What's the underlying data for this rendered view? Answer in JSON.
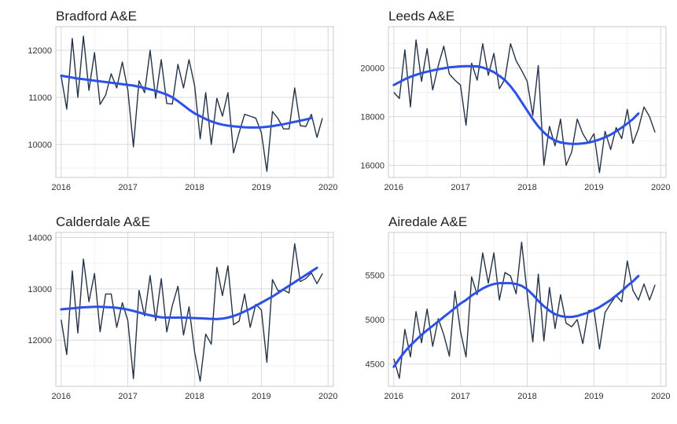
{
  "colors": {
    "series": "#243447",
    "trend": "#2d50e6",
    "grid": "#d9d9d9"
  },
  "chart_data": [
    {
      "type": "line",
      "title": "Bradford A&E",
      "x_start": "2016-01",
      "x_step": "month",
      "xlim": [
        2015.92,
        2020.08
      ],
      "ylim": [
        9300,
        12500
      ],
      "x_ticks": [
        2016,
        2017,
        2018,
        2019,
        2020
      ],
      "y_ticks": [
        10000,
        11000,
        12000
      ],
      "xlabel": "",
      "ylabel": "",
      "grid": true,
      "series": [
        {
          "values": [
            11450,
            10750,
            12250,
            11000,
            12300,
            11150,
            11950,
            10850,
            11050,
            11500,
            11200,
            11750,
            11150,
            9950,
            11350,
            11100,
            12000,
            10980,
            11800,
            10870,
            10860,
            11700,
            11200,
            11800,
            11250,
            10120,
            11100,
            10000,
            10980,
            10600,
            11100,
            9820,
            10250,
            10640,
            10600,
            10560,
            10250,
            9430,
            10700,
            10550,
            10330,
            10330,
            11200,
            10400,
            10380,
            10640,
            10150,
            10560
          ]
        },
        {
          "values": [
            11460,
            11440,
            11420,
            11400,
            11385,
            11370,
            11355,
            11340,
            11325,
            11310,
            11295,
            11280,
            11265,
            11250,
            11225,
            11200,
            11170,
            11140,
            11100,
            11060,
            11000,
            10920,
            10830,
            10740,
            10660,
            10600,
            10540,
            10490,
            10450,
            10420,
            10400,
            10385,
            10375,
            10365,
            10360,
            10360,
            10365,
            10375,
            10390,
            10410,
            10430,
            10455,
            10480,
            10505,
            10530,
            10560
          ]
        }
      ]
    },
    {
      "type": "line",
      "title": "Leeds A&E",
      "x_start": "2016-01",
      "x_step": "month",
      "xlim": [
        2015.92,
        2020.08
      ],
      "ylim": [
        15500,
        21700
      ],
      "x_ticks": [
        2016,
        2017,
        2018,
        2019,
        2020
      ],
      "y_ticks": [
        16000,
        18000,
        20000
      ],
      "xlabel": "",
      "ylabel": "",
      "grid": true,
      "series": [
        {
          "values": [
            19000,
            18750,
            20750,
            18400,
            21150,
            19450,
            20800,
            19100,
            20100,
            20900,
            19750,
            19500,
            19300,
            17650,
            20200,
            19500,
            21000,
            19700,
            20600,
            19150,
            19550,
            21000,
            20300,
            19900,
            19450,
            18050,
            20100,
            16000,
            17600,
            16800,
            17900,
            16000,
            16550,
            17900,
            17300,
            16920,
            17300,
            15700,
            17400,
            16650,
            17550,
            17100,
            18300,
            16900,
            17500,
            18400,
            18000,
            17350
          ]
        },
        {
          "values": [
            19300,
            19420,
            19540,
            19640,
            19720,
            19790,
            19850,
            19900,
            19950,
            19990,
            20030,
            20050,
            20070,
            20080,
            20080,
            20070,
            20020,
            19940,
            19830,
            19680,
            19500,
            19250,
            18950,
            18600,
            18250,
            17900,
            17600,
            17350,
            17150,
            17020,
            16940,
            16900,
            16880,
            16880,
            16900,
            16930,
            16990,
            17060,
            17150,
            17260,
            17400,
            17550,
            17720,
            17900,
            18130
          ]
        }
      ]
    },
    {
      "type": "line",
      "title": "Calderdale A&E",
      "x_start": "2016-01",
      "x_step": "month",
      "xlim": [
        2015.92,
        2020.08
      ],
      "ylim": [
        11100,
        14100
      ],
      "x_ticks": [
        2016,
        2017,
        2018,
        2019,
        2020
      ],
      "y_ticks": [
        12000,
        13000,
        14000
      ],
      "xlabel": "",
      "ylabel": "",
      "grid": true,
      "series": [
        {
          "values": [
            12400,
            11720,
            13350,
            12140,
            13580,
            12750,
            13300,
            12160,
            12900,
            12900,
            12250,
            12730,
            12380,
            11250,
            12970,
            12470,
            13260,
            12380,
            13200,
            12160,
            12680,
            13050,
            12100,
            12650,
            11770,
            11200,
            12120,
            11920,
            13420,
            12870,
            13450,
            12300,
            12370,
            12900,
            12250,
            12700,
            12590,
            11570,
            13180,
            12960,
            12980,
            12920,
            13880,
            13140,
            13200,
            13310,
            13100,
            13300
          ]
        },
        {
          "values": [
            12600,
            12610,
            12620,
            12630,
            12640,
            12645,
            12650,
            12650,
            12645,
            12640,
            12630,
            12615,
            12595,
            12570,
            12540,
            12510,
            12485,
            12460,
            12445,
            12440,
            12440,
            12440,
            12440,
            12435,
            12430,
            12425,
            12420,
            12415,
            12410,
            12420,
            12440,
            12470,
            12510,
            12560,
            12610,
            12670,
            12730,
            12790,
            12850,
            12920,
            12990,
            13060,
            13130,
            13200,
            13270,
            13340,
            13410
          ]
        }
      ]
    },
    {
      "type": "line",
      "title": "Airedale A&E",
      "x_start": "2016-01",
      "x_step": "month",
      "xlim": [
        2015.92,
        2020.08
      ],
      "ylim": [
        4250,
        5980
      ],
      "x_ticks": [
        2016,
        2017,
        2018,
        2019,
        2020
      ],
      "y_ticks": [
        4500,
        5000,
        5500
      ],
      "xlabel": "",
      "ylabel": "",
      "grid": true,
      "series": [
        {
          "values": [
            4560,
            4340,
            4890,
            4580,
            5090,
            4740,
            5120,
            4700,
            5010,
            4830,
            4590,
            5320,
            4870,
            4580,
            5480,
            5280,
            5750,
            5410,
            5750,
            5220,
            5530,
            5490,
            5290,
            5870,
            5290,
            4750,
            5510,
            4760,
            5360,
            4900,
            5280,
            4960,
            4920,
            5000,
            4730,
            5100,
            5110,
            4670,
            5080,
            5180,
            5270,
            5200,
            5660,
            5330,
            5220,
            5400,
            5220,
            5390
          ]
        },
        {
          "values": [
            4470,
            4560,
            4640,
            4710,
            4770,
            4830,
            4880,
            4930,
            4980,
            5030,
            5080,
            5130,
            5180,
            5220,
            5270,
            5310,
            5350,
            5380,
            5400,
            5410,
            5410,
            5410,
            5400,
            5380,
            5340,
            5280,
            5210,
            5150,
            5100,
            5060,
            5040,
            5030,
            5030,
            5040,
            5060,
            5080,
            5110,
            5140,
            5180,
            5220,
            5270,
            5320,
            5380,
            5430,
            5490
          ]
        }
      ]
    }
  ]
}
